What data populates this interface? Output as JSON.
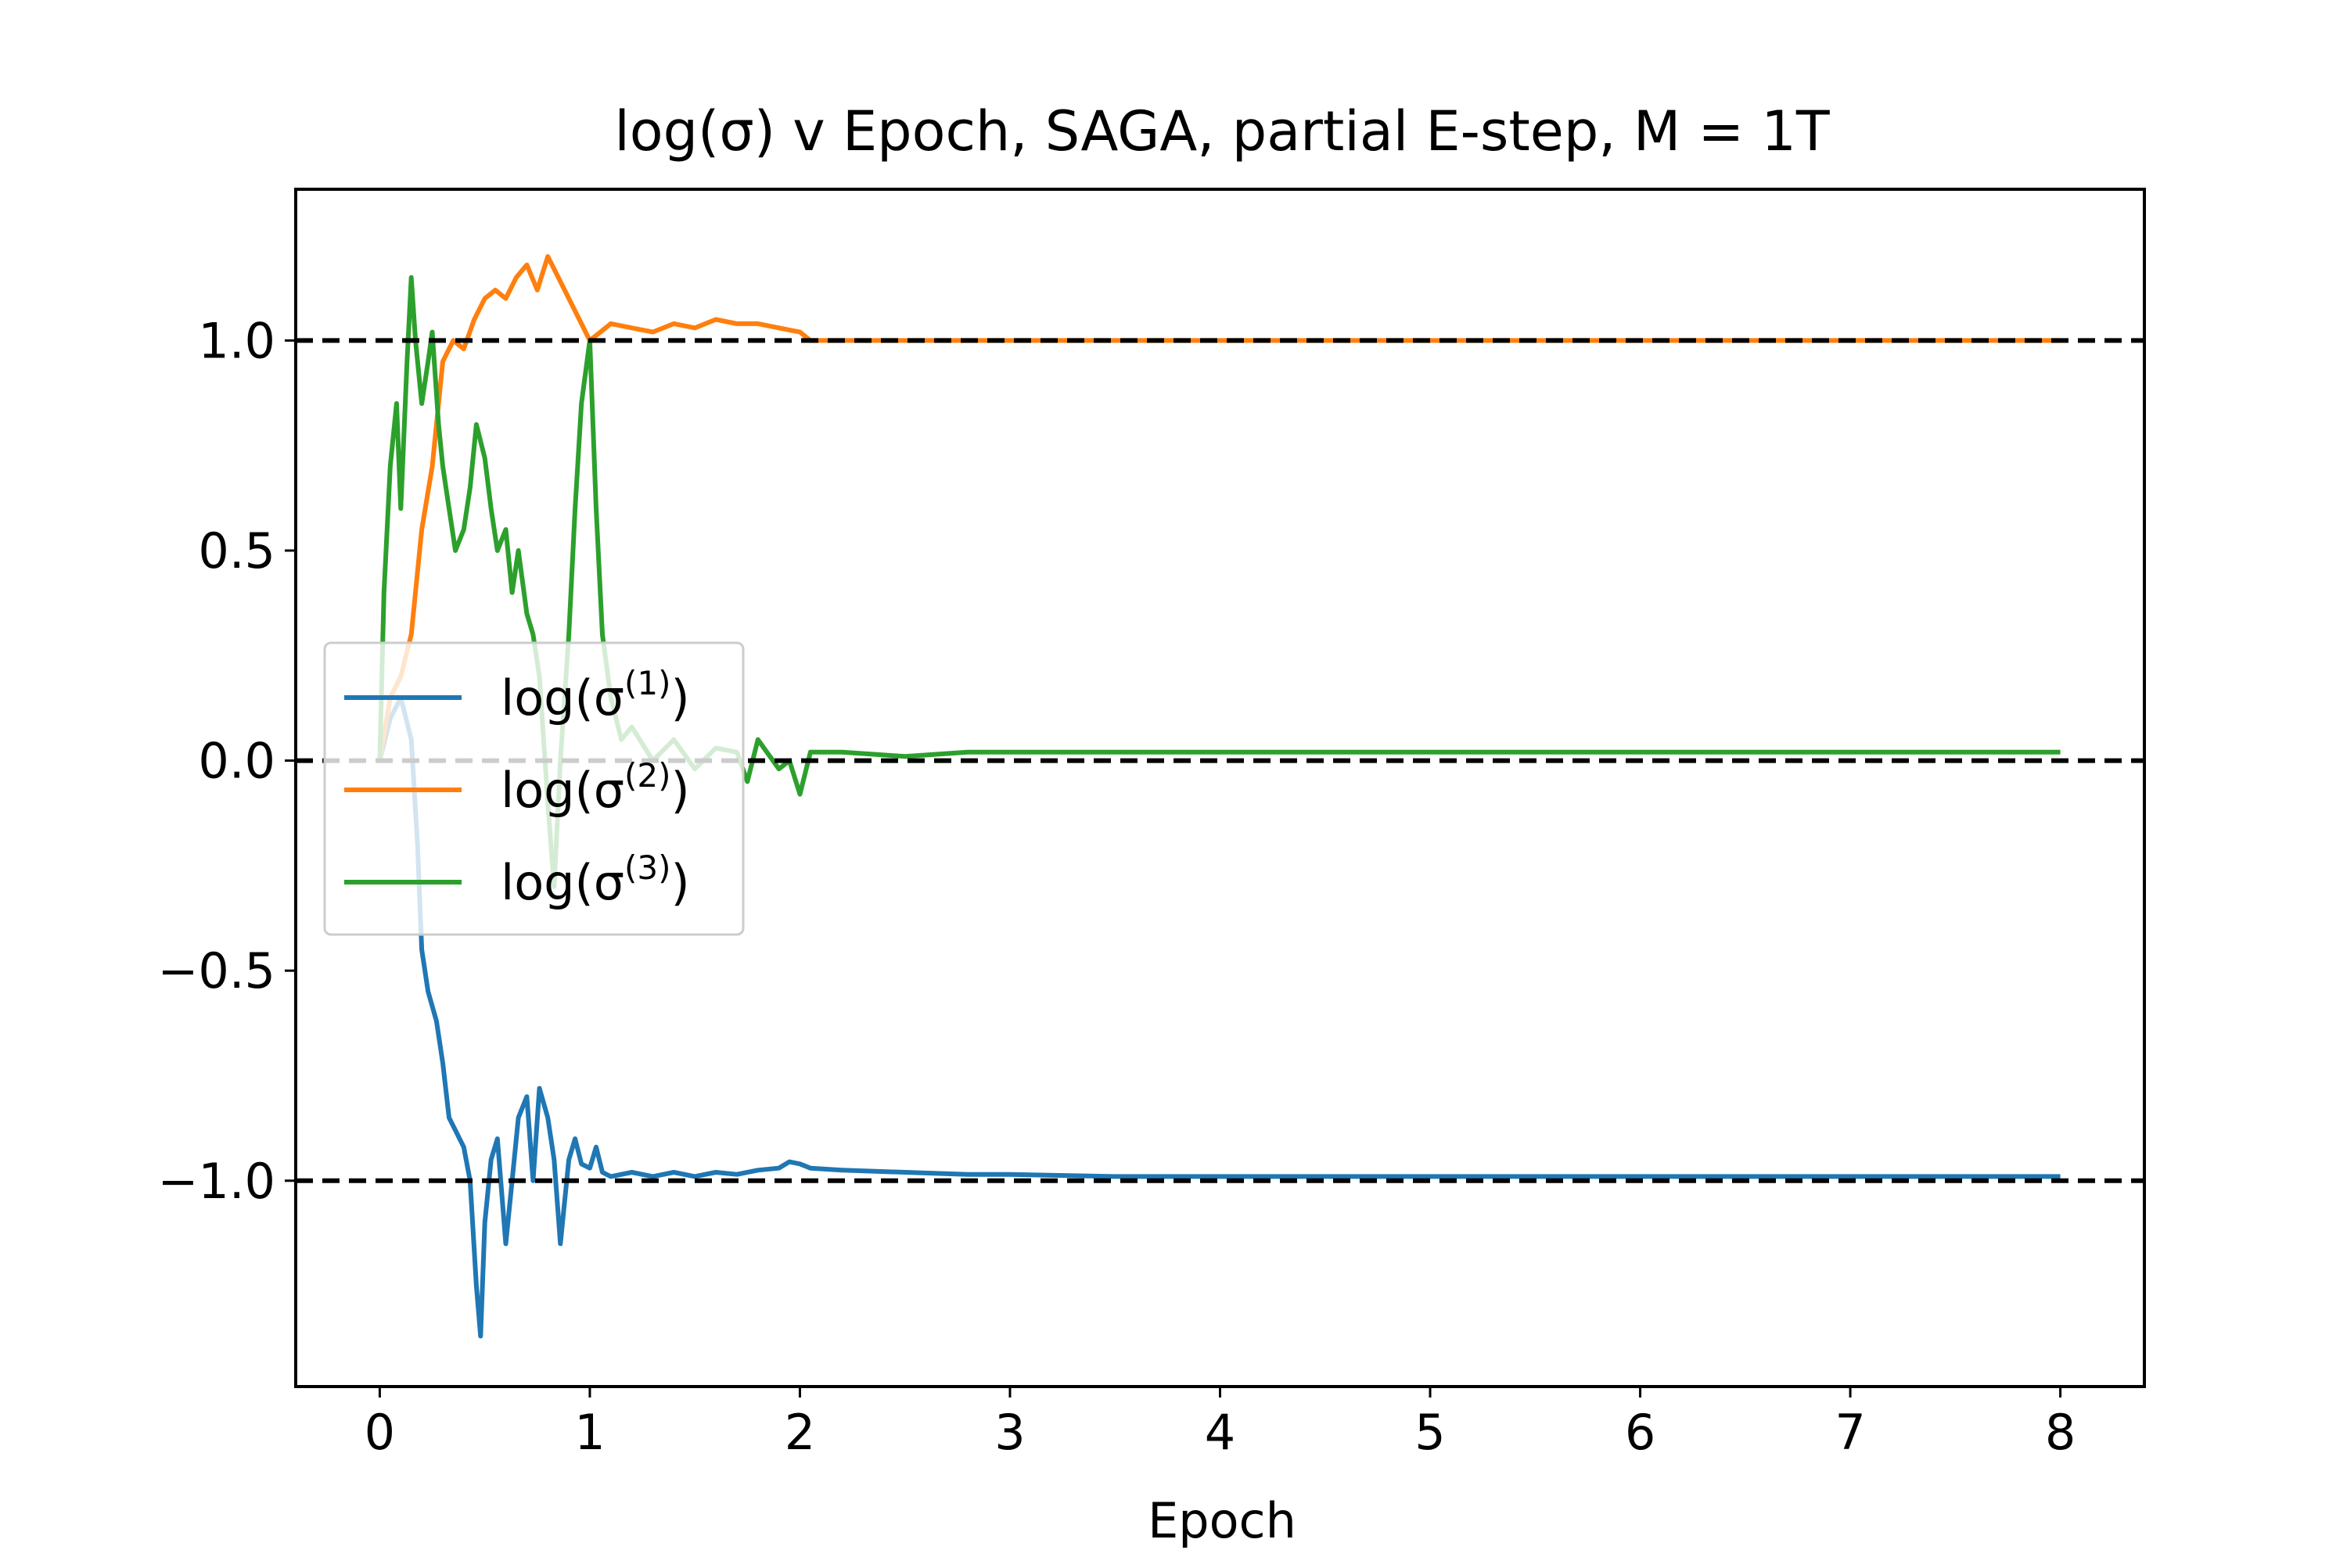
{
  "chart_data": {
    "type": "line",
    "title": "log(σ) v Epoch, SAGA, partial E-step, M = 1T",
    "xlabel": "Epoch",
    "ylabel": "",
    "xlim": [
      -0.4,
      8.4
    ],
    "ylim": [
      -1.49,
      1.36
    ],
    "xticks": [
      0,
      1,
      2,
      3,
      4,
      5,
      6,
      7,
      8
    ],
    "xtick_labels": [
      "0",
      "1",
      "2",
      "3",
      "4",
      "5",
      "6",
      "7",
      "8"
    ],
    "yticks": [
      -1.0,
      -0.5,
      0.0,
      0.5,
      1.0
    ],
    "ytick_labels": [
      "−1.0",
      "−0.5",
      "0.0",
      "0.5",
      "1.0"
    ],
    "reference_lines": [
      1.0,
      0.0,
      -1.0
    ],
    "reference_line_color": "#000000",
    "reference_line_style": "dashed",
    "grid": false,
    "legend_position": "center-left",
    "series": [
      {
        "name": "log(σ(1))",
        "legend_base": "log(σ",
        "legend_sup": "(1)",
        "legend_tail": ")",
        "color": "#1f77b4",
        "points": [
          [
            0,
            0
          ],
          [
            0.05,
            0.1
          ],
          [
            0.1,
            0.15
          ],
          [
            0.15,
            0.05
          ],
          [
            0.18,
            -0.2
          ],
          [
            0.2,
            -0.45
          ],
          [
            0.23,
            -0.55
          ],
          [
            0.27,
            -0.62
          ],
          [
            0.3,
            -0.72
          ],
          [
            0.33,
            -0.85
          ],
          [
            0.36,
            -0.88
          ],
          [
            0.4,
            -0.92
          ],
          [
            0.43,
            -1.0
          ],
          [
            0.46,
            -1.25
          ],
          [
            0.48,
            -1.37
          ],
          [
            0.5,
            -1.1
          ],
          [
            0.53,
            -0.95
          ],
          [
            0.56,
            -0.9
          ],
          [
            0.6,
            -1.15
          ],
          [
            0.63,
            -1.0
          ],
          [
            0.66,
            -0.85
          ],
          [
            0.7,
            -0.8
          ],
          [
            0.73,
            -1.0
          ],
          [
            0.76,
            -0.78
          ],
          [
            0.8,
            -0.85
          ],
          [
            0.83,
            -0.95
          ],
          [
            0.86,
            -1.15
          ],
          [
            0.9,
            -0.95
          ],
          [
            0.93,
            -0.9
          ],
          [
            0.96,
            -0.96
          ],
          [
            1.0,
            -0.97
          ],
          [
            1.03,
            -0.92
          ],
          [
            1.06,
            -0.98
          ],
          [
            1.1,
            -0.99
          ],
          [
            1.2,
            -0.98
          ],
          [
            1.3,
            -0.99
          ],
          [
            1.4,
            -0.98
          ],
          [
            1.5,
            -0.99
          ],
          [
            1.6,
            -0.98
          ],
          [
            1.7,
            -0.985
          ],
          [
            1.8,
            -0.975
          ],
          [
            1.9,
            -0.97
          ],
          [
            1.95,
            -0.955
          ],
          [
            2.0,
            -0.96
          ],
          [
            2.05,
            -0.97
          ],
          [
            2.2,
            -0.975
          ],
          [
            2.5,
            -0.98
          ],
          [
            2.8,
            -0.985
          ],
          [
            3.0,
            -0.985
          ],
          [
            3.5,
            -0.99
          ],
          [
            4,
            -0.99
          ],
          [
            5,
            -0.99
          ],
          [
            6,
            -0.99
          ],
          [
            7,
            -0.99
          ],
          [
            8,
            -0.99
          ]
        ]
      },
      {
        "name": "log(σ(2))",
        "legend_base": "log(σ",
        "legend_sup": "(2)",
        "legend_tail": ")",
        "color": "#ff7f0e",
        "points": [
          [
            0,
            0
          ],
          [
            0.05,
            0.15
          ],
          [
            0.1,
            0.2
          ],
          [
            0.15,
            0.3
          ],
          [
            0.2,
            0.55
          ],
          [
            0.25,
            0.7
          ],
          [
            0.3,
            0.95
          ],
          [
            0.35,
            1.0
          ],
          [
            0.4,
            0.98
          ],
          [
            0.45,
            1.05
          ],
          [
            0.5,
            1.1
          ],
          [
            0.55,
            1.12
          ],
          [
            0.6,
            1.1
          ],
          [
            0.65,
            1.15
          ],
          [
            0.7,
            1.18
          ],
          [
            0.75,
            1.12
          ],
          [
            0.8,
            1.2
          ],
          [
            0.85,
            1.15
          ],
          [
            0.9,
            1.1
          ],
          [
            0.95,
            1.05
          ],
          [
            1.0,
            1.0
          ],
          [
            1.05,
            1.02
          ],
          [
            1.1,
            1.04
          ],
          [
            1.2,
            1.03
          ],
          [
            1.3,
            1.02
          ],
          [
            1.4,
            1.04
          ],
          [
            1.5,
            1.03
          ],
          [
            1.6,
            1.05
          ],
          [
            1.7,
            1.04
          ],
          [
            1.8,
            1.04
          ],
          [
            1.9,
            1.03
          ],
          [
            2.0,
            1.02
          ],
          [
            2.05,
            1.0
          ],
          [
            2.3,
            1.0
          ],
          [
            2.6,
            1.0
          ],
          [
            3.0,
            1.0
          ],
          [
            4,
            1.0
          ],
          [
            5,
            1.0
          ],
          [
            6,
            1.0
          ],
          [
            7,
            1.0
          ],
          [
            8,
            1.0
          ]
        ]
      },
      {
        "name": "log(σ(3))",
        "legend_base": "log(σ",
        "legend_sup": "(3)",
        "legend_tail": ")",
        "color": "#2ca02c",
        "points": [
          [
            0,
            0
          ],
          [
            0.02,
            0.4
          ],
          [
            0.05,
            0.7
          ],
          [
            0.08,
            0.85
          ],
          [
            0.1,
            0.6
          ],
          [
            0.13,
            0.95
          ],
          [
            0.15,
            1.15
          ],
          [
            0.17,
            1.0
          ],
          [
            0.2,
            0.85
          ],
          [
            0.23,
            0.95
          ],
          [
            0.25,
            1.02
          ],
          [
            0.28,
            0.8
          ],
          [
            0.3,
            0.7
          ],
          [
            0.33,
            0.6
          ],
          [
            0.36,
            0.5
          ],
          [
            0.4,
            0.55
          ],
          [
            0.43,
            0.65
          ],
          [
            0.46,
            0.8
          ],
          [
            0.5,
            0.72
          ],
          [
            0.53,
            0.6
          ],
          [
            0.56,
            0.5
          ],
          [
            0.6,
            0.55
          ],
          [
            0.63,
            0.4
          ],
          [
            0.66,
            0.5
          ],
          [
            0.7,
            0.35
          ],
          [
            0.73,
            0.3
          ],
          [
            0.76,
            0.2
          ],
          [
            0.8,
            -0.1
          ],
          [
            0.83,
            -0.3
          ],
          [
            0.86,
            0.0
          ],
          [
            0.9,
            0.3
          ],
          [
            0.93,
            0.6
          ],
          [
            0.96,
            0.85
          ],
          [
            1.0,
            1.0
          ],
          [
            1.03,
            0.6
          ],
          [
            1.06,
            0.3
          ],
          [
            1.1,
            0.15
          ],
          [
            1.15,
            0.05
          ],
          [
            1.2,
            0.08
          ],
          [
            1.3,
            0.0
          ],
          [
            1.4,
            0.05
          ],
          [
            1.5,
            -0.02
          ],
          [
            1.6,
            0.03
          ],
          [
            1.7,
            0.02
          ],
          [
            1.75,
            -0.05
          ],
          [
            1.8,
            0.05
          ],
          [
            1.9,
            -0.02
          ],
          [
            1.95,
            0.0
          ],
          [
            2.0,
            -0.08
          ],
          [
            2.05,
            0.02
          ],
          [
            2.2,
            0.02
          ],
          [
            2.5,
            0.01
          ],
          [
            2.8,
            0.02
          ],
          [
            3.0,
            0.02
          ],
          [
            3.5,
            0.02
          ],
          [
            4,
            0.02
          ],
          [
            5,
            0.02
          ],
          [
            6,
            0.02
          ],
          [
            7,
            0.02
          ],
          [
            8,
            0.02
          ]
        ]
      }
    ]
  }
}
